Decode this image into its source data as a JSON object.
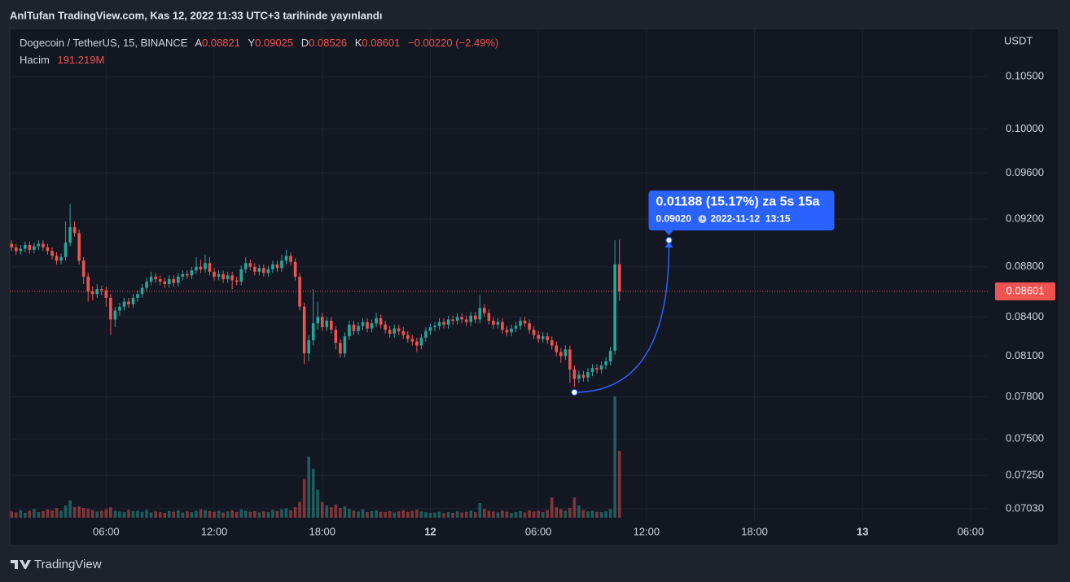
{
  "page_title": "AnlTufan TradingView.com, Kas 12, 2022 11:33 UTC+3 tarihinde yayınlandı",
  "chart_data": {
    "type": "candlestick",
    "symbol_line": "Dogecoin / TetherUS, 15, BINANCE",
    "ohlc_letters": [
      "A",
      "Y",
      "D",
      "K"
    ],
    "change_label": "−0.00220 (−2.49%)",
    "volume_title": "Hacim",
    "volume_label": "191.219M",
    "currency": "USDT",
    "log_scale": true,
    "grid": true,
    "colors": {
      "up": "#26a69a",
      "down": "#ef5350"
    },
    "open": [
      0.0899,
      0.0896,
      0.0893,
      0.0895,
      0.0898,
      0.0894,
      0.0897,
      0.0899,
      0.0896,
      0.0893,
      0.0889,
      0.0885,
      0.0888,
      0.09,
      0.0913,
      0.0908,
      0.0885,
      0.0872,
      0.086,
      0.0858,
      0.0862,
      0.0861,
      0.0855,
      0.0838,
      0.0845,
      0.0848,
      0.0852,
      0.085,
      0.0855,
      0.0858,
      0.0863,
      0.0868,
      0.0872,
      0.087,
      0.0868,
      0.0866,
      0.087,
      0.0867,
      0.0872,
      0.0874,
      0.0873,
      0.0877,
      0.088,
      0.0878,
      0.0883,
      0.0876,
      0.0872,
      0.0874,
      0.087,
      0.0873,
      0.0869,
      0.0868,
      0.0878,
      0.0883,
      0.088,
      0.0876,
      0.0879,
      0.0875,
      0.0878,
      0.0882,
      0.0879,
      0.0885,
      0.0889,
      0.0884,
      0.0872,
      0.0848,
      0.0812,
      0.0822,
      0.0835,
      0.084,
      0.0832,
      0.0837,
      0.083,
      0.082,
      0.0812,
      0.0825,
      0.0834,
      0.0829,
      0.0833,
      0.0836,
      0.0831,
      0.0835,
      0.0839,
      0.0834,
      0.083,
      0.0827,
      0.0831,
      0.0829,
      0.0826,
      0.0823,
      0.0821,
      0.0818,
      0.0824,
      0.0829,
      0.0832,
      0.0833,
      0.0836,
      0.0834,
      0.0838,
      0.0837,
      0.084,
      0.0838,
      0.0836,
      0.0841,
      0.0838,
      0.0847,
      0.0843,
      0.0837,
      0.0834,
      0.0836,
      0.083,
      0.0828,
      0.0831,
      0.0833,
      0.0837,
      0.0835,
      0.083,
      0.0826,
      0.0823,
      0.0825,
      0.0822,
      0.0818,
      0.0813,
      0.081,
      0.0815,
      0.08,
      0.0793,
      0.0796,
      0.0794,
      0.0798,
      0.0801,
      0.08,
      0.0803,
      0.0806,
      0.0814,
      0.08821
    ],
    "high": [
      0.0902,
      0.0899,
      0.0898,
      0.0901,
      0.0901,
      0.09,
      0.0902,
      0.0902,
      0.0899,
      0.0896,
      0.0892,
      0.0891,
      0.0918,
      0.0933,
      0.0918,
      0.0911,
      0.0888,
      0.0875,
      0.0864,
      0.0866,
      0.0865,
      0.0864,
      0.0858,
      0.0848,
      0.0851,
      0.0855,
      0.0855,
      0.0858,
      0.0861,
      0.0866,
      0.0871,
      0.0876,
      0.0875,
      0.0873,
      0.0871,
      0.0873,
      0.0873,
      0.0875,
      0.0877,
      0.0877,
      0.088,
      0.0888,
      0.0886,
      0.089,
      0.0888,
      0.0879,
      0.0877,
      0.0877,
      0.0876,
      0.0876,
      0.0872,
      0.0881,
      0.0888,
      0.0886,
      0.0883,
      0.0882,
      0.0882,
      0.0881,
      0.0885,
      0.0885,
      0.089,
      0.0894,
      0.0892,
      0.0887,
      0.0875,
      0.0851,
      0.0826,
      0.0862,
      0.0852,
      0.0843,
      0.084,
      0.084,
      0.0833,
      0.0823,
      0.0828,
      0.0837,
      0.0837,
      0.0836,
      0.0839,
      0.0839,
      0.0838,
      0.0843,
      0.0842,
      0.0837,
      0.0833,
      0.0834,
      0.0834,
      0.0832,
      0.0829,
      0.0826,
      0.0824,
      0.0827,
      0.0832,
      0.0835,
      0.0836,
      0.0839,
      0.0839,
      0.0841,
      0.0841,
      0.0843,
      0.0843,
      0.0841,
      0.0844,
      0.0844,
      0.0857,
      0.085,
      0.0846,
      0.084,
      0.0839,
      0.0839,
      0.0833,
      0.0834,
      0.0836,
      0.084,
      0.084,
      0.0838,
      0.0833,
      0.0829,
      0.0828,
      0.0828,
      0.0825,
      0.0821,
      0.0816,
      0.0818,
      0.0818,
      0.0803,
      0.0799,
      0.0799,
      0.0801,
      0.0804,
      0.0804,
      0.0806,
      0.0809,
      0.0817,
      0.0902,
      0.09025
    ],
    "low": [
      0.0893,
      0.089,
      0.089,
      0.0892,
      0.0891,
      0.0891,
      0.0894,
      0.0893,
      0.089,
      0.0886,
      0.0882,
      0.0882,
      0.0885,
      0.0897,
      0.0905,
      0.0882,
      0.0866,
      0.0852,
      0.0853,
      0.0855,
      0.0857,
      0.0848,
      0.0826,
      0.0832,
      0.0841,
      0.0845,
      0.0847,
      0.0847,
      0.0852,
      0.0855,
      0.086,
      0.0865,
      0.0867,
      0.0865,
      0.0863,
      0.0863,
      0.0864,
      0.0864,
      0.0869,
      0.087,
      0.087,
      0.0874,
      0.0875,
      0.0875,
      0.0873,
      0.0869,
      0.0869,
      0.0867,
      0.0867,
      0.0862,
      0.0865,
      0.0865,
      0.0875,
      0.0877,
      0.0873,
      0.0873,
      0.0872,
      0.0872,
      0.0875,
      0.0876,
      0.0876,
      0.0882,
      0.0881,
      0.0869,
      0.0845,
      0.0804,
      0.0806,
      0.0818,
      0.083,
      0.0829,
      0.0829,
      0.0827,
      0.0815,
      0.0809,
      0.0809,
      0.0822,
      0.0826,
      0.0826,
      0.083,
      0.0828,
      0.0828,
      0.0832,
      0.0831,
      0.0827,
      0.0824,
      0.0824,
      0.0826,
      0.0823,
      0.082,
      0.0818,
      0.0813,
      0.0815,
      0.0821,
      0.0826,
      0.0829,
      0.083,
      0.0831,
      0.0831,
      0.0834,
      0.0834,
      0.0835,
      0.0833,
      0.0833,
      0.0835,
      0.0835,
      0.084,
      0.0834,
      0.0831,
      0.0831,
      0.0827,
      0.0825,
      0.0825,
      0.0828,
      0.083,
      0.0832,
      0.0827,
      0.0823,
      0.082,
      0.082,
      0.0819,
      0.0815,
      0.081,
      0.0805,
      0.0807,
      0.079,
      0.0787,
      0.079,
      0.0791,
      0.0791,
      0.0795,
      0.0797,
      0.0797,
      0.08,
      0.0803,
      0.0811,
      0.08526
    ],
    "close": [
      0.0896,
      0.0893,
      0.0895,
      0.0898,
      0.0894,
      0.0897,
      0.0899,
      0.0896,
      0.0893,
      0.0889,
      0.0885,
      0.0888,
      0.09,
      0.0913,
      0.0908,
      0.0885,
      0.0872,
      0.086,
      0.0858,
      0.0862,
      0.0861,
      0.0855,
      0.0838,
      0.0845,
      0.0848,
      0.0852,
      0.085,
      0.0855,
      0.0858,
      0.0863,
      0.0868,
      0.0872,
      0.087,
      0.0868,
      0.0866,
      0.087,
      0.0867,
      0.0872,
      0.0874,
      0.0873,
      0.0877,
      0.088,
      0.0878,
      0.0883,
      0.0876,
      0.0872,
      0.0874,
      0.087,
      0.0873,
      0.0869,
      0.0868,
      0.0878,
      0.0883,
      0.088,
      0.0876,
      0.0879,
      0.0875,
      0.0878,
      0.0882,
      0.0879,
      0.0885,
      0.0889,
      0.0884,
      0.0872,
      0.0848,
      0.0812,
      0.0822,
      0.0835,
      0.084,
      0.0832,
      0.0837,
      0.083,
      0.082,
      0.0812,
      0.0825,
      0.0834,
      0.0829,
      0.0833,
      0.0836,
      0.0831,
      0.0835,
      0.0839,
      0.0834,
      0.083,
      0.0827,
      0.0831,
      0.0829,
      0.0826,
      0.0823,
      0.0821,
      0.0818,
      0.0824,
      0.0829,
      0.0832,
      0.0833,
      0.0836,
      0.0834,
      0.0838,
      0.0837,
      0.084,
      0.0838,
      0.0836,
      0.0841,
      0.0838,
      0.0847,
      0.0843,
      0.0837,
      0.0834,
      0.0836,
      0.083,
      0.0828,
      0.0831,
      0.0833,
      0.0837,
      0.0835,
      0.083,
      0.0826,
      0.0823,
      0.0825,
      0.0822,
      0.0818,
      0.0813,
      0.081,
      0.0815,
      0.08,
      0.0793,
      0.0796,
      0.0794,
      0.0798,
      0.0801,
      0.08,
      0.0803,
      0.0806,
      0.0814,
      0.08821,
      0.08601
    ],
    "volume": [
      18,
      15,
      22,
      14,
      20,
      25,
      16,
      19,
      24,
      21,
      28,
      20,
      35,
      50,
      30,
      32,
      28,
      26,
      22,
      18,
      20,
      24,
      30,
      20,
      18,
      16,
      22,
      19,
      20,
      17,
      23,
      15,
      18,
      16,
      14,
      19,
      17,
      21,
      15,
      18,
      16,
      20,
      24,
      22,
      19,
      17,
      20,
      15,
      18,
      21,
      16,
      24,
      20,
      17,
      19,
      15,
      18,
      16,
      22,
      19,
      24,
      27,
      21,
      30,
      45,
      110,
      175,
      140,
      80,
      45,
      35,
      30,
      38,
      28,
      33,
      25,
      20,
      18,
      24,
      16,
      19,
      21,
      17,
      16,
      19,
      15,
      18,
      22,
      17,
      20,
      23,
      18,
      16,
      14,
      15,
      17,
      13,
      16,
      14,
      18,
      15,
      17,
      20,
      16,
      42,
      25,
      20,
      18,
      15,
      20,
      17,
      14,
      16,
      19,
      15,
      21,
      18,
      20,
      16,
      22,
      58,
      30,
      25,
      20,
      28,
      58,
      35,
      22,
      18,
      20,
      17,
      16,
      18,
      25,
      347,
      191.219
    ],
    "ylim": [
      0.0695,
      0.1098
    ],
    "yticks": [
      {
        "value": 0.0703,
        "label": "0.07030"
      },
      {
        "value": 0.0725,
        "label": "0.07250"
      },
      {
        "value": 0.075,
        "label": "0.07500"
      },
      {
        "value": 0.078,
        "label": "0.07800"
      },
      {
        "value": 0.081,
        "label": "0.08100"
      },
      {
        "value": 0.084,
        "label": "0.08400"
      },
      {
        "value": 0.088,
        "label": "0.08800"
      },
      {
        "value": 0.092,
        "label": "0.09200"
      },
      {
        "value": 0.096,
        "label": "0.09600"
      },
      {
        "value": 0.1,
        "label": "0.10000"
      },
      {
        "value": 0.105,
        "label": "0.10500"
      }
    ],
    "xlim": [
      -0.4,
      216.8
    ],
    "xticks": [
      {
        "value": 21,
        "label": "06:00"
      },
      {
        "value": 45,
        "label": "12:00"
      },
      {
        "value": 69,
        "label": "18:00"
      },
      {
        "value": 93,
        "label": "12"
      },
      {
        "value": 117,
        "label": "06:00"
      },
      {
        "value": 141,
        "label": "12:00"
      },
      {
        "value": 165,
        "label": "18:00"
      },
      {
        "value": 189,
        "label": "13"
      },
      {
        "value": 213,
        "label": "06:00"
      }
    ],
    "annotation": {
      "text": "0.01188 (15.17%) za 5s 15a",
      "price_label": "0.09020",
      "time_label": "2022-11-12  13:15",
      "start": {
        "x": 125,
        "y": 0.07832
      },
      "end": {
        "x": 146,
        "y": 0.0902
      }
    },
    "watermark": "TradingView"
  }
}
